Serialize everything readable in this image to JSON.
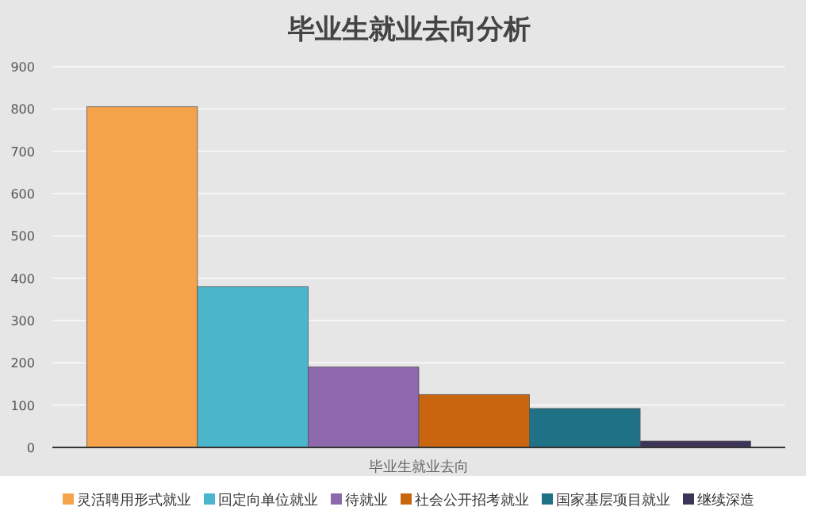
{
  "chart_data": {
    "type": "bar",
    "title": "毕业生就业去向分析",
    "categories": [
      "毕业生就业去向"
    ],
    "series": [
      {
        "name": "灵活聘用形式就业",
        "color": "#f5a34a",
        "values": [
          805
        ]
      },
      {
        "name": "回定向单位就业",
        "color": "#4bb5cc",
        "values": [
          380
        ]
      },
      {
        "name": "待就业",
        "color": "#8d68ac",
        "values": [
          190
        ]
      },
      {
        "name": "社会公开招考就业",
        "color": "#c9650f",
        "values": [
          125
        ]
      },
      {
        "name": "国家基层项目就业",
        "color": "#1f7186",
        "values": [
          92
        ]
      },
      {
        "name": "继续深造",
        "color": "#3d3559",
        "values": [
          15
        ]
      }
    ],
    "ylim": [
      0,
      900
    ],
    "yticks": [
      0,
      100,
      200,
      300,
      400,
      500,
      600,
      700,
      800,
      900
    ],
    "grid": "y",
    "legend": "bottom"
  }
}
